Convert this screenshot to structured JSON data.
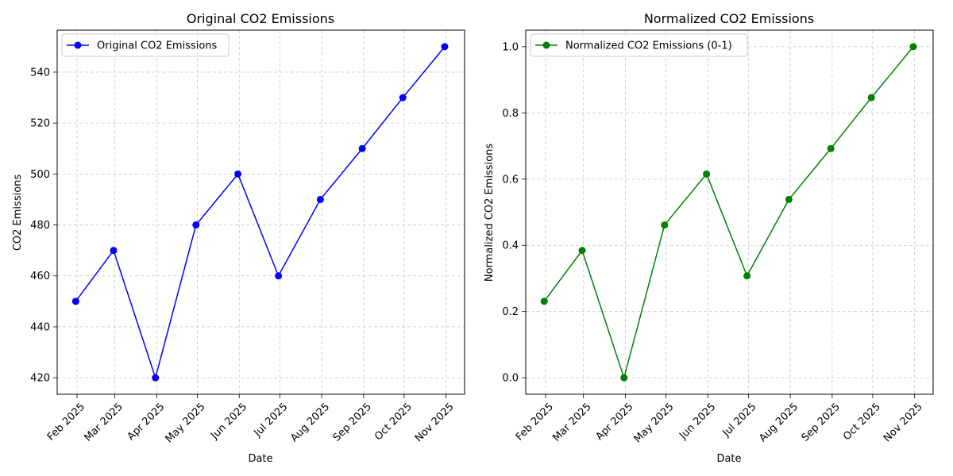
{
  "chart_data": [
    {
      "type": "line",
      "title": "Original CO2 Emissions",
      "xlabel": "Date",
      "ylabel": "CO2 Emissions",
      "x": [
        "2025-01-31",
        "2025-02-28",
        "2025-03-31",
        "2025-04-30",
        "2025-05-31",
        "2025-06-30",
        "2025-07-31",
        "2025-08-31",
        "2025-09-30",
        "2025-10-31"
      ],
      "xtick_dates": [
        "2025-02-01",
        "2025-03-01",
        "2025-04-01",
        "2025-05-01",
        "2025-06-01",
        "2025-07-01",
        "2025-08-01",
        "2025-09-01",
        "2025-10-01",
        "2025-11-01"
      ],
      "xtick_labels": [
        "Feb 2025",
        "Mar 2025",
        "Apr 2025",
        "May 2025",
        "Jun 2025",
        "Jul 2025",
        "Aug 2025",
        "Sep 2025",
        "Oct 2025",
        "Nov 2025"
      ],
      "series": [
        {
          "name": "Original CO2 Emissions",
          "color": "#0000ff",
          "values": [
            450,
            470,
            420,
            480,
            500,
            460,
            490,
            510,
            530,
            550
          ]
        }
      ],
      "ylim": [
        413.5,
        556.5
      ],
      "yticks": [
        420,
        440,
        460,
        480,
        500,
        520,
        540
      ],
      "ytick_labels": [
        "420",
        "440",
        "460",
        "480",
        "500",
        "520",
        "540"
      ],
      "grid": true,
      "legend": "upper left"
    },
    {
      "type": "line",
      "title": "Normalized CO2 Emissions",
      "xlabel": "Date",
      "ylabel": "Normalized CO2 Emissions",
      "x": [
        "2025-01-31",
        "2025-02-28",
        "2025-03-31",
        "2025-04-30",
        "2025-05-31",
        "2025-06-30",
        "2025-07-31",
        "2025-08-31",
        "2025-09-30",
        "2025-10-31"
      ],
      "xtick_dates": [
        "2025-02-01",
        "2025-03-01",
        "2025-04-01",
        "2025-05-01",
        "2025-06-01",
        "2025-07-01",
        "2025-08-01",
        "2025-09-01",
        "2025-10-01",
        "2025-11-01"
      ],
      "xtick_labels": [
        "Feb 2025",
        "Mar 2025",
        "Apr 2025",
        "May 2025",
        "Jun 2025",
        "Jul 2025",
        "Aug 2025",
        "Sep 2025",
        "Oct 2025",
        "Nov 2025"
      ],
      "series": [
        {
          "name": "Normalized CO2 Emissions (0-1)",
          "color": "#008000",
          "values": [
            0.2308,
            0.3846,
            0.0,
            0.4615,
            0.6154,
            0.3077,
            0.5385,
            0.6923,
            0.8462,
            1.0
          ]
        }
      ],
      "ylim": [
        -0.05,
        1.05
      ],
      "yticks": [
        0.0,
        0.2,
        0.4,
        0.6,
        0.8,
        1.0
      ],
      "ytick_labels": [
        "0.0",
        "0.2",
        "0.4",
        "0.6",
        "0.8",
        "1.0"
      ],
      "grid": true,
      "legend": "upper left"
    }
  ]
}
